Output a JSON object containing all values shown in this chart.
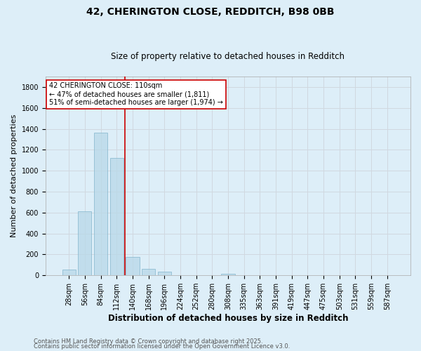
{
  "title": "42, CHERINGTON CLOSE, REDDITCH, B98 0BB",
  "subtitle": "Size of property relative to detached houses in Redditch",
  "xlabel": "Distribution of detached houses by size in Redditch",
  "ylabel": "Number of detached properties",
  "footnote1": "Contains HM Land Registry data © Crown copyright and database right 2025.",
  "footnote2": "Contains public sector information licensed under the Open Government Licence v3.0.",
  "categories": [
    "28sqm",
    "56sqm",
    "84sqm",
    "112sqm",
    "140sqm",
    "168sqm",
    "196sqm",
    "224sqm",
    "252sqm",
    "280sqm",
    "308sqm",
    "335sqm",
    "363sqm",
    "391sqm",
    "419sqm",
    "447sqm",
    "475sqm",
    "503sqm",
    "531sqm",
    "559sqm",
    "587sqm"
  ],
  "values": [
    55,
    610,
    1360,
    1120,
    175,
    60,
    35,
    0,
    0,
    0,
    15,
    0,
    0,
    0,
    0,
    0,
    0,
    0,
    0,
    0,
    0
  ],
  "bar_color": "#b8d8e8",
  "bar_edge_color": "#7ab0c8",
  "bar_alpha": 0.75,
  "grid_color": "#d0d8e0",
  "bg_color": "#ddeef8",
  "red_line_x": 3.5,
  "red_line_color": "#cc0000",
  "annotation_title": "42 CHERINGTON CLOSE: 110sqm",
  "annotation_line1": "← 47% of detached houses are smaller (1,811)",
  "annotation_line2": "51% of semi-detached houses are larger (1,974) →",
  "annotation_box_color": "#ffffff",
  "annotation_box_edge": "#cc0000",
  "ylim": [
    0,
    1900
  ],
  "yticks": [
    0,
    200,
    400,
    600,
    800,
    1000,
    1200,
    1400,
    1600,
    1800
  ],
  "title_fontsize": 10,
  "subtitle_fontsize": 8.5,
  "ylabel_fontsize": 8,
  "xlabel_fontsize": 8.5,
  "tick_fontsize": 7,
  "ann_fontsize": 7,
  "footnote_fontsize": 6
}
